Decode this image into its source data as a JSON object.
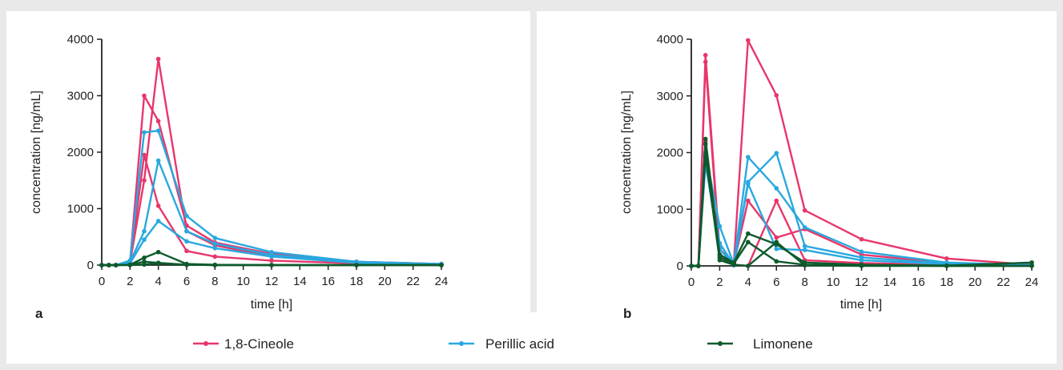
{
  "colors": {
    "cineole": "#e8366b",
    "perillic": "#29a8df",
    "limonene": "#0e5a2c",
    "axis": "#222222"
  },
  "chart_data": [
    {
      "type": "line",
      "panel_label": "a",
      "xlabel": "time [h]",
      "ylabel": "concentration [ng/mL]",
      "xlim": [
        0,
        24
      ],
      "ylim": [
        0,
        4000
      ],
      "xticks": [
        0,
        2,
        4,
        6,
        8,
        10,
        12,
        14,
        16,
        18,
        20,
        22,
        24
      ],
      "yticks": [
        0,
        1000,
        2000,
        3000,
        4000
      ],
      "grid": false,
      "series": [
        {
          "group": "1,8-Cineole",
          "color_key": "cineole",
          "points": [
            [
              0,
              0
            ],
            [
              0.5,
              0
            ],
            [
              1,
              0
            ],
            [
              2,
              50
            ],
            [
              3,
              3000
            ],
            [
              4,
              2550
            ],
            [
              6,
              700
            ],
            [
              8,
              400
            ],
            [
              12,
              200
            ],
            [
              18,
              60
            ],
            [
              24,
              20
            ]
          ]
        },
        {
          "group": "1,8-Cineole",
          "color_key": "cineole",
          "points": [
            [
              0,
              0
            ],
            [
              0.5,
              0
            ],
            [
              1,
              0
            ],
            [
              2,
              40
            ],
            [
              3,
              1500
            ],
            [
              4,
              3650
            ],
            [
              6,
              600
            ],
            [
              8,
              350
            ],
            [
              12,
              150
            ],
            [
              18,
              50
            ],
            [
              24,
              15
            ]
          ]
        },
        {
          "group": "1,8-Cineole",
          "color_key": "cineole",
          "points": [
            [
              0,
              0
            ],
            [
              0.5,
              0
            ],
            [
              1,
              0
            ],
            [
              2,
              30
            ],
            [
              3,
              1950
            ],
            [
              4,
              1050
            ],
            [
              6,
              250
            ],
            [
              8,
              150
            ],
            [
              12,
              80
            ],
            [
              18,
              30
            ],
            [
              24,
              10
            ]
          ]
        },
        {
          "group": "Perillic acid",
          "color_key": "perillic",
          "points": [
            [
              0,
              0
            ],
            [
              0.5,
              0
            ],
            [
              1,
              0
            ],
            [
              2,
              80
            ],
            [
              3,
              2350
            ],
            [
              4,
              2380
            ],
            [
              6,
              870
            ],
            [
              8,
              480
            ],
            [
              12,
              230
            ],
            [
              18,
              60
            ],
            [
              24,
              20
            ]
          ]
        },
        {
          "group": "Perillic acid",
          "color_key": "perillic",
          "points": [
            [
              0,
              0
            ],
            [
              0.5,
              0
            ],
            [
              1,
              0
            ],
            [
              2,
              50
            ],
            [
              3,
              600
            ],
            [
              4,
              1850
            ],
            [
              6,
              600
            ],
            [
              8,
              380
            ],
            [
              12,
              180
            ],
            [
              18,
              50
            ],
            [
              24,
              15
            ]
          ]
        },
        {
          "group": "Perillic acid",
          "color_key": "perillic",
          "points": [
            [
              0,
              0
            ],
            [
              0.5,
              0
            ],
            [
              1,
              0
            ],
            [
              2,
              30
            ],
            [
              3,
              450
            ],
            [
              4,
              780
            ],
            [
              6,
              420
            ],
            [
              8,
              300
            ],
            [
              12,
              150
            ],
            [
              18,
              40
            ],
            [
              24,
              10
            ]
          ]
        },
        {
          "group": "Limonene",
          "color_key": "limonene",
          "points": [
            [
              0,
              0
            ],
            [
              0.5,
              0
            ],
            [
              1,
              0
            ],
            [
              2,
              5
            ],
            [
              3,
              130
            ],
            [
              4,
              230
            ],
            [
              6,
              20
            ],
            [
              8,
              5
            ],
            [
              12,
              0
            ],
            [
              18,
              0
            ],
            [
              24,
              0
            ]
          ]
        },
        {
          "group": "Limonene",
          "color_key": "limonene",
          "points": [
            [
              0,
              0
            ],
            [
              0.5,
              0
            ],
            [
              1,
              0
            ],
            [
              2,
              5
            ],
            [
              3,
              60
            ],
            [
              4,
              40
            ],
            [
              6,
              5
            ],
            [
              8,
              0
            ],
            [
              12,
              0
            ],
            [
              18,
              0
            ],
            [
              24,
              0
            ]
          ]
        },
        {
          "group": "Limonene",
          "color_key": "limonene",
          "points": [
            [
              0,
              0
            ],
            [
              0.5,
              0
            ],
            [
              1,
              0
            ],
            [
              2,
              0
            ],
            [
              3,
              10
            ],
            [
              4,
              30
            ],
            [
              6,
              5
            ],
            [
              8,
              0
            ],
            [
              12,
              0
            ],
            [
              18,
              0
            ],
            [
              24,
              0
            ]
          ]
        }
      ]
    },
    {
      "type": "line",
      "panel_label": "b",
      "xlabel": "time [h]",
      "ylabel": "concentration [ng/mL]",
      "xlim": [
        0,
        24
      ],
      "ylim": [
        0,
        4000
      ],
      "xticks": [
        0,
        2,
        4,
        6,
        8,
        10,
        12,
        14,
        16,
        18,
        20,
        22,
        24
      ],
      "yticks": [
        0,
        1000,
        2000,
        3000,
        4000
      ],
      "grid": false,
      "series": [
        {
          "group": "1,8-Cineole",
          "color_key": "cineole",
          "points": [
            [
              0,
              0
            ],
            [
              0.5,
              0
            ],
            [
              1,
              3720
            ],
            [
              2,
              300
            ],
            [
              3,
              50
            ],
            [
              4,
              3980
            ],
            [
              6,
              3010
            ],
            [
              8,
              980
            ],
            [
              12,
              470
            ],
            [
              18,
              130
            ],
            [
              24,
              20
            ]
          ]
        },
        {
          "group": "1,8-Cineole",
          "color_key": "cineole",
          "points": [
            [
              0,
              0
            ],
            [
              0.5,
              0
            ],
            [
              1,
              3600
            ],
            [
              2,
              200
            ],
            [
              3,
              40
            ],
            [
              4,
              1150
            ],
            [
              6,
              500
            ],
            [
              8,
              650
            ],
            [
              12,
              200
            ],
            [
              18,
              50
            ],
            [
              24,
              10
            ]
          ]
        },
        {
          "group": "1,8-Cineole",
          "color_key": "cineole",
          "points": [
            [
              0,
              0
            ],
            [
              0.5,
              0
            ],
            [
              1,
              2200
            ],
            [
              2,
              150
            ],
            [
              3,
              20
            ],
            [
              4,
              0
            ],
            [
              6,
              1150
            ],
            [
              8,
              100
            ],
            [
              12,
              50
            ],
            [
              18,
              20
            ],
            [
              24,
              5
            ]
          ]
        },
        {
          "group": "Perillic acid",
          "color_key": "perillic",
          "points": [
            [
              0,
              0
            ],
            [
              0.5,
              0
            ],
            [
              1,
              2000
            ],
            [
              2,
              700
            ],
            [
              3,
              30
            ],
            [
              4,
              1920
            ],
            [
              6,
              1370
            ],
            [
              8,
              680
            ],
            [
              12,
              250
            ],
            [
              18,
              60
            ],
            [
              24,
              15
            ]
          ]
        },
        {
          "group": "Perillic acid",
          "color_key": "perillic",
          "points": [
            [
              0,
              0
            ],
            [
              0.5,
              0
            ],
            [
              1,
              1900
            ],
            [
              2,
              400
            ],
            [
              3,
              20
            ],
            [
              4,
              1480
            ],
            [
              6,
              1990
            ],
            [
              8,
              350
            ],
            [
              12,
              150
            ],
            [
              18,
              40
            ],
            [
              24,
              10
            ]
          ]
        },
        {
          "group": "Perillic acid",
          "color_key": "perillic",
          "points": [
            [
              0,
              0
            ],
            [
              0.5,
              0
            ],
            [
              1,
              1800
            ],
            [
              2,
              300
            ],
            [
              3,
              10
            ],
            [
              4,
              1450
            ],
            [
              6,
              300
            ],
            [
              8,
              280
            ],
            [
              12,
              100
            ],
            [
              18,
              30
            ],
            [
              24,
              5
            ]
          ]
        },
        {
          "group": "Limonene",
          "color_key": "limonene",
          "points": [
            [
              0,
              0
            ],
            [
              0.5,
              0
            ],
            [
              1,
              2240
            ],
            [
              2,
              200
            ],
            [
              3,
              60
            ],
            [
              4,
              570
            ],
            [
              6,
              380
            ],
            [
              8,
              60
            ],
            [
              12,
              20
            ],
            [
              18,
              5
            ],
            [
              24,
              60
            ]
          ]
        },
        {
          "group": "Limonene",
          "color_key": "limonene",
          "points": [
            [
              0,
              0
            ],
            [
              0.5,
              0
            ],
            [
              1,
              2150
            ],
            [
              2,
              150
            ],
            [
              3,
              40
            ],
            [
              4,
              420
            ],
            [
              6,
              80
            ],
            [
              8,
              20
            ],
            [
              12,
              5
            ],
            [
              18,
              0
            ],
            [
              24,
              0
            ]
          ]
        },
        {
          "group": "Limonene",
          "color_key": "limonene",
          "points": [
            [
              0,
              0
            ],
            [
              0.5,
              0
            ],
            [
              1,
              1950
            ],
            [
              2,
              100
            ],
            [
              3,
              20
            ],
            [
              4,
              0
            ],
            [
              6,
              420
            ],
            [
              8,
              10
            ],
            [
              12,
              0
            ],
            [
              18,
              0
            ],
            [
              24,
              0
            ]
          ]
        }
      ]
    }
  ],
  "legend": [
    {
      "label": "1,8-Cineole",
      "color_key": "cineole"
    },
    {
      "label": "Perillic acid",
      "color_key": "perillic"
    },
    {
      "label": "Limonene",
      "color_key": "limonene"
    }
  ]
}
